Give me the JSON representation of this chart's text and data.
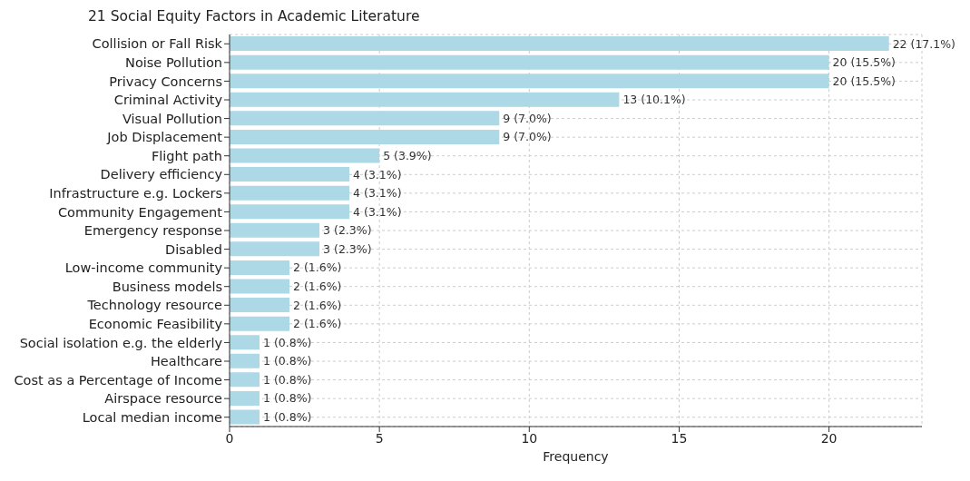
{
  "chart_data": {
    "type": "bar",
    "orientation": "horizontal",
    "title": "21 Social Equity Factors in Academic Literature",
    "xlabel": "Frequency",
    "categories": [
      "Collision or Fall Risk",
      "Noise Pollution",
      "Privacy Concerns",
      "Criminal Activity",
      "Visual Pollution",
      "Job Displacement",
      "Flight path",
      "Delivery efficiency",
      "Infrastructure e.g. Lockers",
      "Community Engagement",
      "Emergency response",
      "Disabled",
      "Low-income community",
      "Business models",
      "Technology resource",
      "Economic Feasibility",
      "Social isolation e.g. the elderly",
      "Healthcare",
      "Cost as a Percentage of Income",
      "Airspace resource",
      "Local median income"
    ],
    "values": [
      22,
      20,
      20,
      13,
      9,
      9,
      5,
      4,
      4,
      4,
      3,
      3,
      2,
      2,
      2,
      2,
      1,
      1,
      1,
      1,
      1
    ],
    "value_labels": [
      "22 (17.1%)",
      "20 (15.5%)",
      "20 (15.5%)",
      "13 (10.1%)",
      "9 (7.0%)",
      "9 (7.0%)",
      "5 (3.9%)",
      "4 (3.1%)",
      "4 (3.1%)",
      "4 (3.1%)",
      "3 (2.3%)",
      "3 (2.3%)",
      "2 (1.6%)",
      "2 (1.6%)",
      "2 (1.6%)",
      "2 (1.6%)",
      "1 (0.8%)",
      "1 (0.8%)",
      "1 (0.8%)",
      "1 (0.8%)",
      "1 (0.8%)"
    ],
    "color": "#add8e6",
    "xlim": [
      0,
      23.1
    ],
    "xticks": [
      0,
      5,
      10,
      15,
      20
    ],
    "grid": true
  }
}
